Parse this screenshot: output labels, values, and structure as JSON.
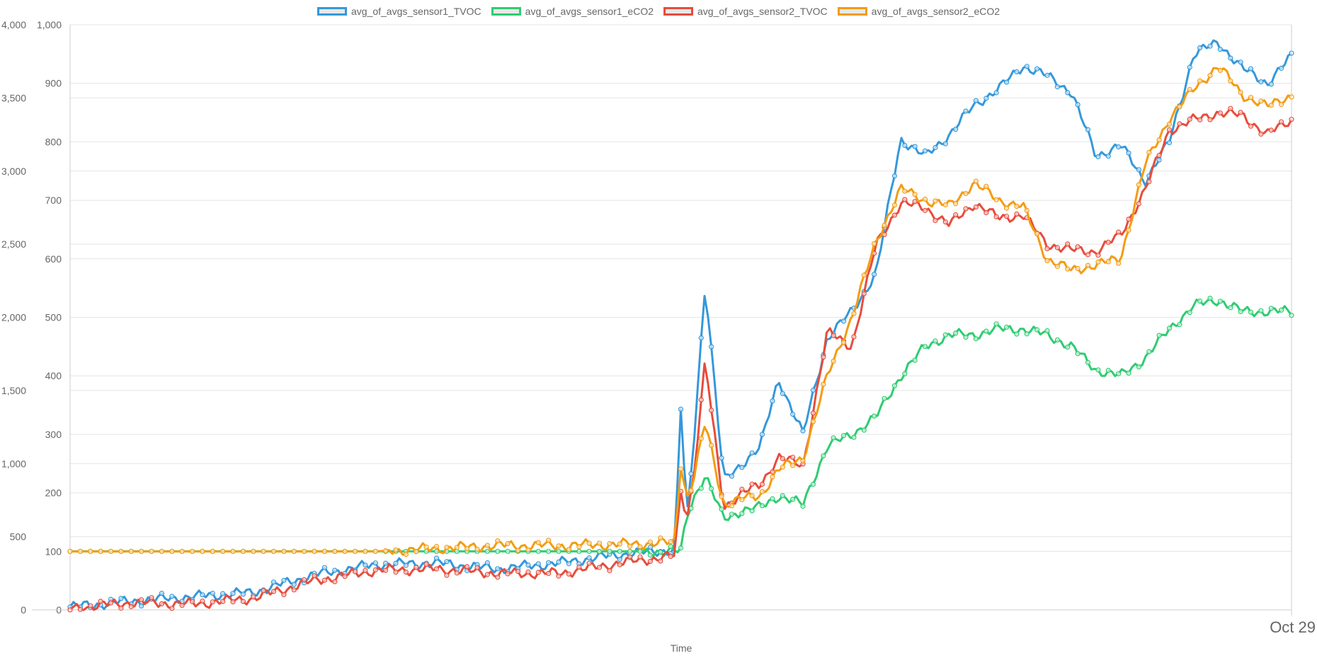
{
  "chart_data": {
    "type": "line",
    "x_label": "Time",
    "x_tick_labels": [
      "Oct 29"
    ],
    "left_axis": {
      "range": [
        0,
        4000
      ],
      "ticks": [
        0,
        500,
        1000,
        1500,
        2000,
        2500,
        3000,
        3500,
        4000
      ],
      "tick_labels": [
        "0",
        "500",
        "1,000",
        "1,500",
        "2,000",
        "2,500",
        "3,000",
        "3,500",
        "4,000"
      ]
    },
    "right_axis": {
      "range": [
        0,
        1000
      ],
      "ticks": [
        0,
        100,
        200,
        300,
        400,
        500,
        600,
        700,
        800,
        900,
        1000
      ],
      "tick_labels": [
        "0",
        "100",
        "200",
        "300",
        "400",
        "500",
        "600",
        "700",
        "800",
        "900",
        "1,000"
      ]
    },
    "grid": true,
    "legend_position": "top-center",
    "x_index": [
      0,
      0.05,
      0.1,
      0.15,
      0.2,
      0.25,
      0.3,
      0.35,
      0.4,
      0.45,
      0.495,
      0.5,
      0.505,
      0.51,
      0.52,
      0.535,
      0.55,
      0.565,
      0.58,
      0.6,
      0.62,
      0.64,
      0.66,
      0.68,
      0.7,
      0.72,
      0.74,
      0.76,
      0.78,
      0.8,
      0.82,
      0.84,
      0.86,
      0.88,
      0.9,
      0.92,
      0.94,
      0.96,
      0.98,
      1.0
    ],
    "series": [
      {
        "name": "avg_of_avgs_sensor1_TVOC",
        "color": "#3498db",
        "axis": "left",
        "values": [
          20,
          60,
          90,
          120,
          240,
          310,
          320,
          280,
          320,
          380,
          410,
          1380,
          620,
          1080,
          2240,
          880,
          1000,
          1110,
          1580,
          1200,
          1860,
          2040,
          2300,
          3220,
          3100,
          3250,
          3450,
          3560,
          3720,
          3650,
          3540,
          3100,
          3180,
          2930,
          3200,
          3800,
          3880,
          3700,
          3600,
          3780
        ]
      },
      {
        "name": "avg_of_avgs_sensor1_eCO2",
        "color": "#2ecc71",
        "axis": "right",
        "values": [
          100,
          100,
          100,
          100,
          100,
          100,
          100,
          100,
          100,
          100,
          100,
          100,
          160,
          190,
          230,
          155,
          170,
          175,
          195,
          180,
          280,
          300,
          330,
          400,
          450,
          470,
          470,
          480,
          480,
          470,
          450,
          410,
          400,
          430,
          480,
          520,
          530,
          510,
          510,
          510
        ]
      },
      {
        "name": "avg_of_avgs_sensor2_TVOC",
        "color": "#e74c3c",
        "axis": "left",
        "values": [
          10,
          50,
          40,
          80,
          200,
          270,
          280,
          250,
          250,
          320,
          370,
          800,
          640,
          880,
          1700,
          700,
          800,
          850,
          1050,
          980,
          1900,
          1800,
          2500,
          2780,
          2750,
          2630,
          2780,
          2680,
          2700,
          2500,
          2460,
          2450,
          2560,
          2870,
          3280,
          3350,
          3400,
          3380,
          3250,
          3350
        ]
      },
      {
        "name": "avg_of_avgs_sensor2_eCO2",
        "color": "#f39c12",
        "axis": "right",
        "values": [
          100,
          100,
          100,
          100,
          100,
          100,
          105,
          110,
          110,
          112,
          115,
          250,
          190,
          220,
          320,
          180,
          190,
          195,
          240,
          260,
          400,
          500,
          630,
          720,
          700,
          690,
          730,
          700,
          690,
          600,
          580,
          590,
          600,
          760,
          840,
          890,
          930,
          880,
          860,
          880
        ]
      }
    ]
  }
}
